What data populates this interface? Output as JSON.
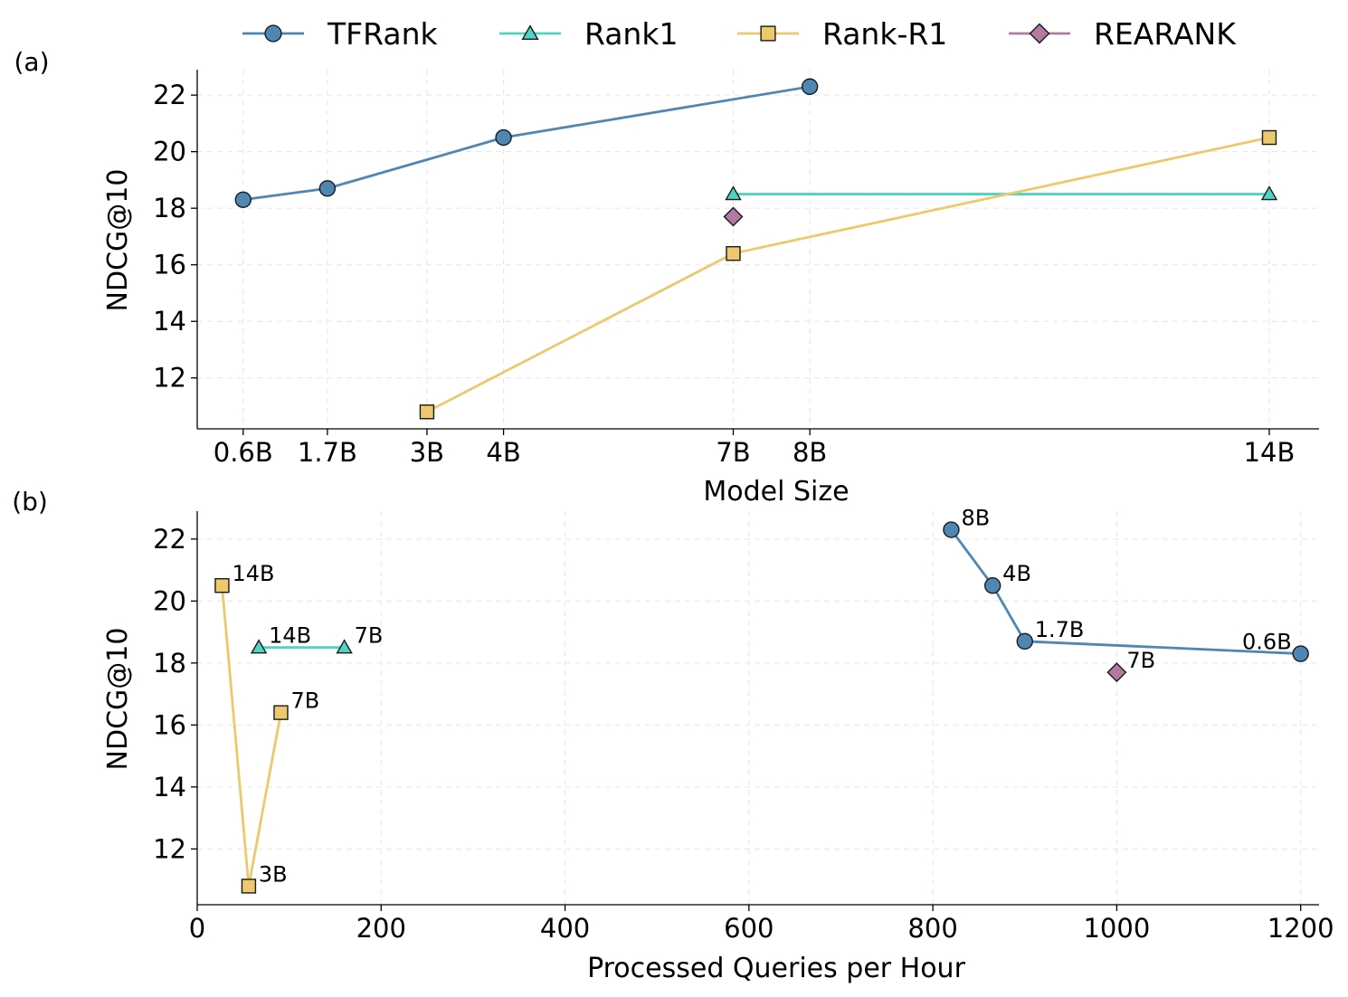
{
  "chart_data": [
    {
      "type": "line",
      "panel_label": "(a)",
      "xlabel": "Model Size",
      "ylabel": "NDCG@10",
      "x_scale": "categorical-positioned",
      "x_ticks": [
        {
          "label": "0.6B",
          "value": 0.6
        },
        {
          "label": "1.7B",
          "value": 1.7
        },
        {
          "label": "3B",
          "value": 3
        },
        {
          "label": "4B",
          "value": 4
        },
        {
          "label": "7B",
          "value": 7
        },
        {
          "label": "8B",
          "value": 8
        },
        {
          "label": "14B",
          "value": 14
        }
      ],
      "xlim": [
        0,
        14.65
      ],
      "ylim": [
        10.2,
        22.9
      ],
      "y_ticks": [
        12,
        14,
        16,
        18,
        20,
        22
      ],
      "grid": true,
      "series": [
        {
          "name": "TFRank",
          "color": "#4e86b4",
          "marker": "circle",
          "points": [
            {
              "x": 0.6,
              "y": 18.3
            },
            {
              "x": 1.7,
              "y": 18.7
            },
            {
              "x": 4,
              "y": 20.5
            },
            {
              "x": 8,
              "y": 22.3
            }
          ]
        },
        {
          "name": "Rank1",
          "color": "#4fd3c4",
          "marker": "triangle",
          "points": [
            {
              "x": 7,
              "y": 18.5
            },
            {
              "x": 14,
              "y": 18.5
            }
          ]
        },
        {
          "name": "Rank-R1",
          "color": "#edc96d",
          "marker": "square",
          "points": [
            {
              "x": 3,
              "y": 10.8
            },
            {
              "x": 7,
              "y": 16.4
            },
            {
              "x": 14,
              "y": 20.5
            }
          ]
        },
        {
          "name": "REARANK",
          "color": "#b07aa1",
          "marker": "diamond",
          "points": [
            {
              "x": 7,
              "y": 17.7
            }
          ]
        }
      ]
    },
    {
      "type": "line",
      "panel_label": "(b)",
      "xlabel": "Processed Queries per Hour",
      "ylabel": "NDCG@10",
      "xlim": [
        0,
        1220
      ],
      "ylim": [
        10.2,
        22.9
      ],
      "x_ticks": [
        {
          "label": "0",
          "value": 0
        },
        {
          "label": "200",
          "value": 200
        },
        {
          "label": "400",
          "value": 400
        },
        {
          "label": "600",
          "value": 600
        },
        {
          "label": "800",
          "value": 800
        },
        {
          "label": "1000",
          "value": 1000
        },
        {
          "label": "1200",
          "value": 1200
        }
      ],
      "y_ticks": [
        12,
        14,
        16,
        18,
        20,
        22
      ],
      "grid": true,
      "series": [
        {
          "name": "TFRank",
          "color": "#4e86b4",
          "marker": "circle",
          "points": [
            {
              "x": 820,
              "y": 22.3,
              "label": "8B",
              "label_pos": "right"
            },
            {
              "x": 865,
              "y": 20.5,
              "label": "4B",
              "label_pos": "right"
            },
            {
              "x": 900,
              "y": 18.7,
              "label": "1.7B",
              "label_pos": "right"
            },
            {
              "x": 1200,
              "y": 18.3,
              "label": "0.6B",
              "label_pos": "left"
            }
          ]
        },
        {
          "name": "Rank1",
          "color": "#4fd3c4",
          "marker": "triangle",
          "points": [
            {
              "x": 67,
              "y": 18.5,
              "label": "14B",
              "label_pos": "right"
            },
            {
              "x": 160,
              "y": 18.5,
              "label": "7B",
              "label_pos": "right"
            }
          ]
        },
        {
          "name": "Rank-R1",
          "color": "#edc96d",
          "marker": "square",
          "points": [
            {
              "x": 27,
              "y": 20.5,
              "label": "14B",
              "label_pos": "right"
            },
            {
              "x": 56,
              "y": 10.8,
              "label": "3B",
              "label_pos": "right"
            },
            {
              "x": 91,
              "y": 16.4,
              "label": "7B",
              "label_pos": "right"
            }
          ]
        },
        {
          "name": "REARANK",
          "color": "#b07aa1",
          "marker": "diamond",
          "points": [
            {
              "x": 1000,
              "y": 17.7,
              "label": "7B",
              "label_pos": "right"
            }
          ]
        }
      ]
    }
  ],
  "legend": {
    "placement": "top-center",
    "entries": [
      {
        "label": "TFRank",
        "color": "#4e86b4",
        "marker": "circle"
      },
      {
        "label": "Rank1",
        "color": "#4fd3c4",
        "marker": "triangle"
      },
      {
        "label": "Rank-R1",
        "color": "#edc96d",
        "marker": "square"
      },
      {
        "label": "REARANK",
        "color": "#b07aa1",
        "marker": "diamond"
      }
    ]
  }
}
